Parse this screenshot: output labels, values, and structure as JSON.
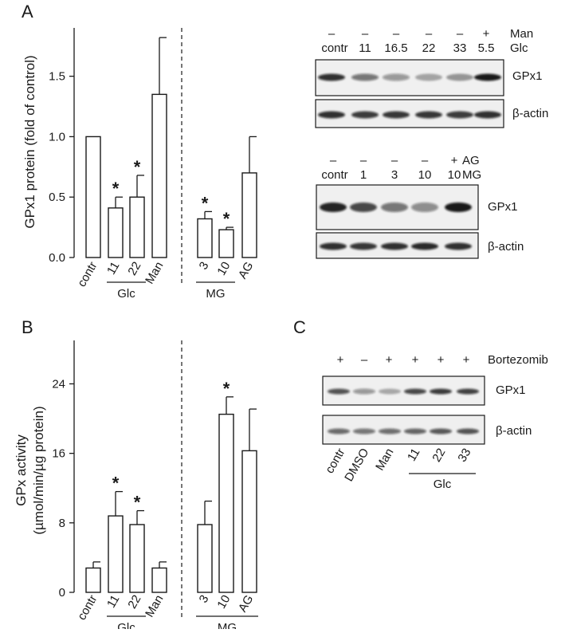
{
  "panels": {
    "a": "A",
    "b": "B",
    "c": "C"
  },
  "chart_data": [
    {
      "type": "bar",
      "panel": "A",
      "ylabel": "GPx1 protein (fold of control)",
      "ylim": [
        0,
        1.9
      ],
      "yticks": [
        "0.0",
        "0.5",
        "1.0",
        "1.5"
      ],
      "categories": [
        "contr",
        "11",
        "22",
        "Man",
        "3",
        "10",
        "AG"
      ],
      "values": [
        1.0,
        0.41,
        0.5,
        1.35,
        0.32,
        0.23,
        0.7
      ],
      "errors": [
        0,
        0.09,
        0.18,
        0.47,
        0.06,
        0.02,
        0.3
      ],
      "significant": [
        false,
        true,
        true,
        false,
        true,
        true,
        false
      ],
      "significance_mark": "*",
      "groups": [
        {
          "label": "Glc",
          "from": 1,
          "to": 2
        },
        {
          "label": "MG",
          "from": 4,
          "to": 5
        }
      ],
      "divider_after_index": 3
    },
    {
      "type": "bar",
      "panel": "B",
      "ylabel_line1": "GPx activity",
      "ylabel_line2": "(µmol/min/µg protein)",
      "ylim": [
        0,
        29
      ],
      "yticks": [
        "0",
        "8",
        "16",
        "24"
      ],
      "categories": [
        "contr",
        "11",
        "22",
        "Man",
        "3",
        "10",
        "AG"
      ],
      "values": [
        2.8,
        8.8,
        7.8,
        2.8,
        7.8,
        20.5,
        16.3
      ],
      "errors": [
        0.7,
        2.8,
        1.6,
        0.7,
        2.7,
        2.0,
        4.8
      ],
      "significant": [
        false,
        true,
        true,
        false,
        false,
        true,
        false
      ],
      "significance_mark": "*",
      "groups": [
        {
          "label": "Glc",
          "from": 1,
          "to": 2
        },
        {
          "label": "MG",
          "from": 4,
          "to": 6
        }
      ],
      "divider_after_index": 3
    }
  ],
  "blots": {
    "a_top": {
      "row1": [
        "–",
        "–",
        "–",
        "–",
        "–",
        "+"
      ],
      "row1_label": "Man",
      "row2": [
        "contr",
        "11",
        "16.5",
        "22",
        "33",
        "5.5"
      ],
      "row2_label": "Glc",
      "band1": "GPx1",
      "band2": "β-actin"
    },
    "a_bottom": {
      "row1": [
        "–",
        "–",
        "–",
        "–",
        "+"
      ],
      "row1_label": "AG",
      "row2": [
        "contr",
        "1",
        "3",
        "10",
        "10"
      ],
      "row2_label": "MG",
      "band1": "GPx1",
      "band2": "β-actin"
    },
    "c": {
      "row1": [
        "+",
        "–",
        "+",
        "+",
        "+",
        "+"
      ],
      "row1_label": "Bortezomib",
      "band1": "GPx1",
      "band2": "β-actin",
      "lanes": [
        "contr",
        "DMSO",
        "Man",
        "11",
        "22",
        "33"
      ],
      "group": "Glc"
    }
  }
}
